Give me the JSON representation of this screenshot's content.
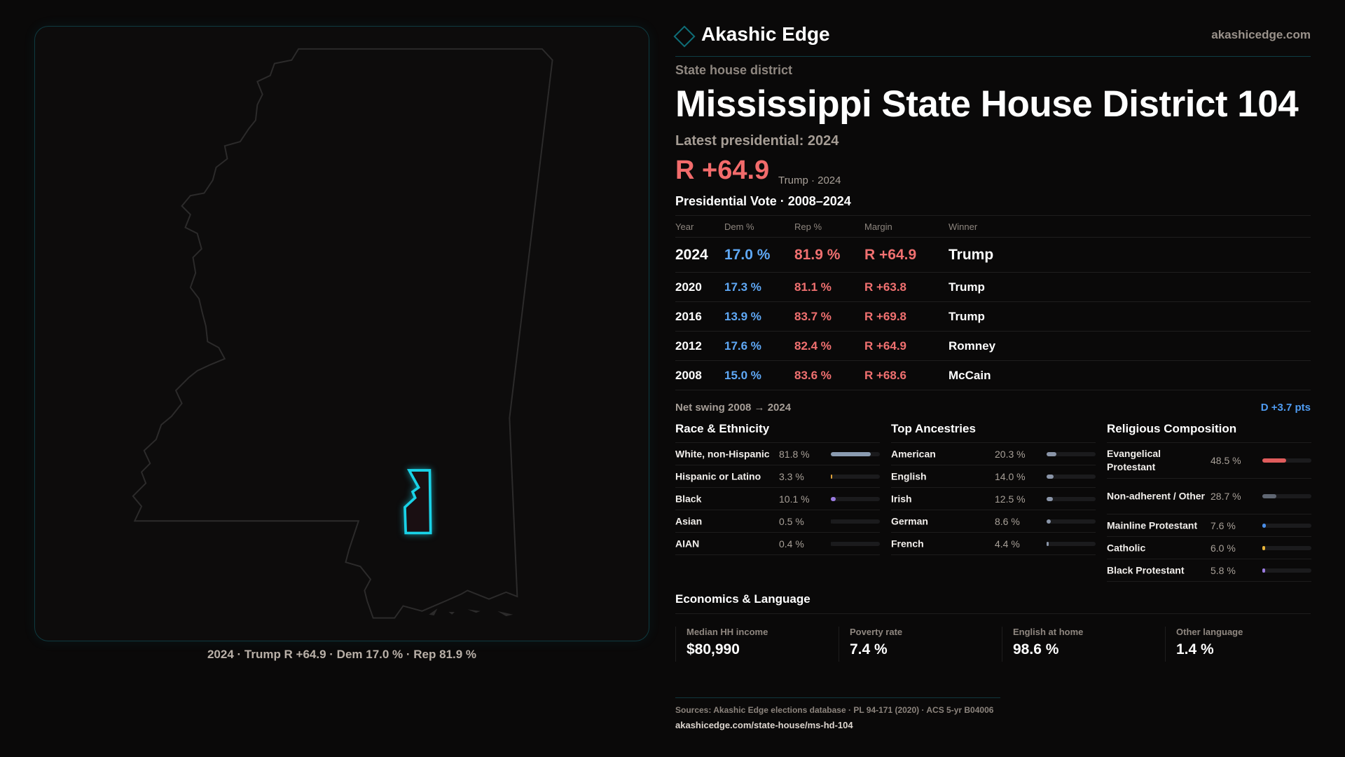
{
  "map": {
    "caption": "2024 · Trump R +64.9 · Dem 17.0 % · Rep 81.9 %",
    "highlight_color": "#19d3e8"
  },
  "header": {
    "brand": "Akashic Edge",
    "site": "akashicedge.com",
    "logo_icon": "diamond-icon"
  },
  "district": {
    "kind": "State house district",
    "title": "Mississippi State House District 104",
    "latest": "Latest presidential: 2024",
    "margin": "R +64.9",
    "margin_sub": "Trump · 2024"
  },
  "presidential": {
    "title": "Presidential Vote · 2008–2024",
    "columns": [
      "Year",
      "Dem %",
      "Rep %",
      "Margin",
      "Winner"
    ],
    "rows": [
      {
        "year": "2024",
        "dem": "17.0 %",
        "rep": "81.9 %",
        "margin": "R +64.9",
        "winner": "Trump"
      },
      {
        "year": "2020",
        "dem": "17.3 %",
        "rep": "81.1 %",
        "margin": "R +63.8",
        "winner": "Trump"
      },
      {
        "year": "2016",
        "dem": "13.9 %",
        "rep": "83.7 %",
        "margin": "R +69.8",
        "winner": "Trump"
      },
      {
        "year": "2012",
        "dem": "17.6 %",
        "rep": "82.4 %",
        "margin": "R +64.9",
        "winner": "Romney"
      },
      {
        "year": "2008",
        "dem": "15.0 %",
        "rep": "83.6 %",
        "margin": "R +68.6",
        "winner": "McCain"
      }
    ],
    "swing_label": "Net swing 2008 → 2024",
    "swing_value": "D +3.7 pts"
  },
  "sections": [
    {
      "title": "Race & Ethnicity",
      "items": [
        {
          "label": "White, non-Hispanic",
          "value": "81.8 %",
          "pct": 81.8,
          "color": "#8a9bb0"
        },
        {
          "label": "Hispanic or Latino",
          "value": "3.3 %",
          "pct": 3.3,
          "color": "#e0a33a"
        },
        {
          "label": "Black",
          "value": "10.1 %",
          "pct": 10.1,
          "color": "#9b7be0"
        },
        {
          "label": "Asian",
          "value": "0.5 %",
          "pct": 0.5,
          "color": "#1b1b1d"
        },
        {
          "label": "AIAN",
          "value": "0.4 %",
          "pct": 0.4,
          "color": "#1b1b1d"
        }
      ]
    },
    {
      "title": "Top Ancestries",
      "items": [
        {
          "label": "American",
          "value": "20.3 %",
          "pct": 20.3,
          "color": "#8a95a8"
        },
        {
          "label": "English",
          "value": "14.0 %",
          "pct": 14.0,
          "color": "#8a95a8"
        },
        {
          "label": "Irish",
          "value": "12.5 %",
          "pct": 12.5,
          "color": "#8a95a8"
        },
        {
          "label": "German",
          "value": "8.6 %",
          "pct": 8.6,
          "color": "#8a95a8"
        },
        {
          "label": "French",
          "value": "4.4 %",
          "pct": 4.4,
          "color": "#8a95a8"
        }
      ]
    },
    {
      "title": "Religious Composition",
      "items": [
        {
          "label": "Evangelical Protestant",
          "value": "48.5 %",
          "pct": 48.5,
          "color": "#e05c5c"
        },
        {
          "label": "Non-adherent / Other",
          "value": "28.7 %",
          "pct": 28.7,
          "color": "#5f6672"
        },
        {
          "label": "Mainline Protestant",
          "value": "7.6 %",
          "pct": 7.6,
          "color": "#4a8ee8"
        },
        {
          "label": "Catholic",
          "value": "6.0 %",
          "pct": 6.0,
          "color": "#e8b43a"
        },
        {
          "label": "Black Protestant",
          "value": "5.8 %",
          "pct": 5.8,
          "color": "#9b7be0"
        }
      ]
    }
  ],
  "economics": {
    "title": "Economics & Language",
    "cards": [
      {
        "label": "Median HH income",
        "value": "$80,990"
      },
      {
        "label": "Poverty rate",
        "value": "7.4 %"
      },
      {
        "label": "English at home",
        "value": "98.6 %"
      },
      {
        "label": "Other language",
        "value": "1.4 %"
      }
    ]
  },
  "footer": {
    "sources": "Sources: Akashic Edge elections database · PL 94-171 (2020) · ACS 5-yr B04006",
    "url": "akashicedge.com/state-house/ms-hd-104"
  }
}
